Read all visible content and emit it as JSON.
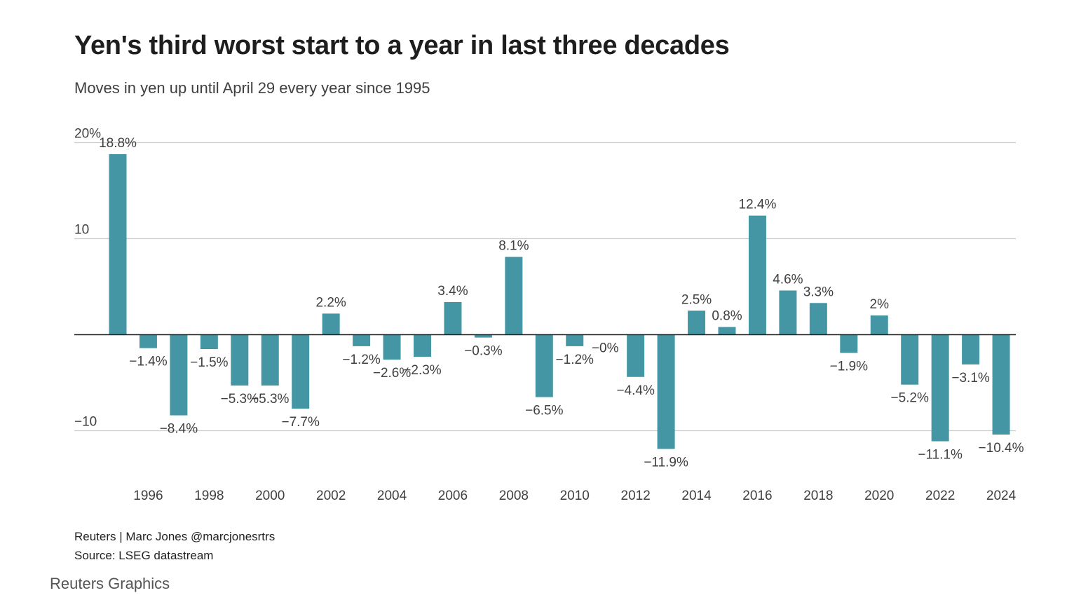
{
  "title": "Yen's third worst start to a year in last three decades",
  "subtitle": "Moves in yen up until April 29 every year since 1995",
  "credit": "Reuters | Marc Jones @marcjonesrtrs",
  "source": "Source: LSEG datastream",
  "brand": "Reuters Graphics",
  "colors": {
    "bar": "#4596a5",
    "grid": "#cccccc",
    "axis": "#222222",
    "text": "#404040"
  },
  "chart_data": {
    "type": "bar",
    "categories": [
      1995,
      1996,
      1997,
      1998,
      1999,
      2000,
      2001,
      2002,
      2003,
      2004,
      2005,
      2006,
      2007,
      2008,
      2009,
      2010,
      2011,
      2012,
      2013,
      2014,
      2015,
      2016,
      2017,
      2018,
      2019,
      2020,
      2021,
      2022,
      2023,
      2024
    ],
    "values": [
      18.8,
      -1.4,
      -8.4,
      -1.5,
      -5.3,
      -5.3,
      -7.7,
      2.2,
      -1.2,
      -2.6,
      -2.3,
      3.4,
      -0.3,
      8.1,
      -6.5,
      -1.2,
      -0.01,
      -4.4,
      -11.9,
      2.5,
      0.8,
      12.4,
      4.6,
      3.3,
      -1.9,
      2,
      -5.2,
      -11.1,
      -3.1,
      -10.4
    ],
    "data_labels": [
      "18.8%",
      "−1.4%",
      "−8.4%",
      "−1.5%",
      "−5.3%",
      "−5.3%",
      "−7.7%",
      "2.2%",
      "−1.2%",
      "−2.6%",
      "−2.3%",
      "3.4%",
      "−0.3%",
      "8.1%",
      "−6.5%",
      "−1.2%",
      "−0%",
      "−4.4%",
      "−11.9%",
      "2.5%",
      "0.8%",
      "12.4%",
      "4.6%",
      "3.3%",
      "−1.9%",
      "2%",
      "−5.2%",
      "−11.1%",
      "−3.1%",
      "−10.4%"
    ],
    "ylim": [
      -12,
      20
    ],
    "yticks": [
      {
        "value": 20,
        "label": "20%"
      },
      {
        "value": 10,
        "label": "10"
      },
      {
        "value": -10,
        "label": "−10"
      }
    ],
    "xtick_labels": [
      "1996",
      "1998",
      "2000",
      "2002",
      "2004",
      "2006",
      "2008",
      "2010",
      "2012",
      "2014",
      "2016",
      "2018",
      "2020",
      "2022",
      "2024"
    ],
    "grid": true
  }
}
